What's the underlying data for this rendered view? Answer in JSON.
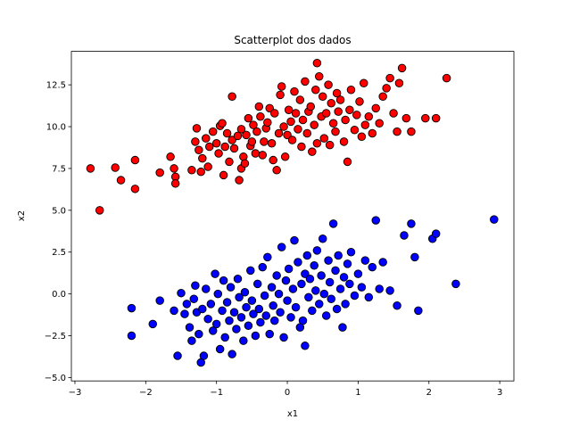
{
  "chart_data": {
    "type": "scatter",
    "title": "Scatterplot dos dados",
    "xlabel": "x1",
    "ylabel": "x2",
    "xlim": [
      -3.05,
      3.2
    ],
    "ylim": [
      -5.2,
      14.5
    ],
    "xticks": [
      -3,
      -2,
      -1,
      0,
      1,
      2,
      3
    ],
    "xtick_labels": [
      "−3",
      "−2",
      "−1",
      "0",
      "1",
      "2",
      "3"
    ],
    "yticks": [
      -5.0,
      -2.5,
      0.0,
      2.5,
      5.0,
      7.5,
      10.0,
      12.5
    ],
    "ytick_labels": [
      "−5.0",
      "−2.5",
      "0.0",
      "2.5",
      "5.0",
      "7.5",
      "10.0",
      "12.5"
    ],
    "grid": false,
    "legend": "none",
    "series": [
      {
        "color": "#ff0000",
        "edgecolor": "#000000",
        "points": [
          [
            -2.78,
            7.5
          ],
          [
            -2.65,
            5.0
          ],
          [
            -2.43,
            7.55
          ],
          [
            -2.35,
            6.8
          ],
          [
            -2.15,
            6.28
          ],
          [
            -2.15,
            8.0
          ],
          [
            -1.8,
            7.25
          ],
          [
            -1.65,
            8.2
          ],
          [
            -1.6,
            7.5
          ],
          [
            -1.58,
            7.0
          ],
          [
            -1.58,
            6.6
          ],
          [
            -1.35,
            7.4
          ],
          [
            -1.3,
            9.1
          ],
          [
            -1.28,
            9.9
          ],
          [
            -1.25,
            8.6
          ],
          [
            -1.22,
            7.3
          ],
          [
            -1.2,
            8.1
          ],
          [
            -1.15,
            9.3
          ],
          [
            -1.12,
            7.6
          ],
          [
            -1.1,
            8.8
          ],
          [
            -1.05,
            9.7
          ],
          [
            -1.0,
            9.0
          ],
          [
            -0.97,
            8.4
          ],
          [
            -0.95,
            10.05
          ],
          [
            -0.92,
            10.2
          ],
          [
            -0.9,
            7.1
          ],
          [
            -0.88,
            8.8
          ],
          [
            -0.85,
            9.6
          ],
          [
            -0.82,
            7.9
          ],
          [
            -0.78,
            11.8
          ],
          [
            -0.78,
            9.2
          ],
          [
            -0.75,
            8.7
          ],
          [
            -0.7,
            9.45
          ],
          [
            -0.68,
            6.8
          ],
          [
            -0.65,
            7.5
          ],
          [
            -0.65,
            9.85
          ],
          [
            -0.62,
            8.2
          ],
          [
            -0.6,
            7.8
          ],
          [
            -0.58,
            9.5
          ],
          [
            -0.55,
            10.5
          ],
          [
            -0.52,
            8.85
          ],
          [
            -0.5,
            9.1
          ],
          [
            -0.48,
            10.1
          ],
          [
            -0.45,
            8.4
          ],
          [
            -0.43,
            9.7
          ],
          [
            -0.4,
            11.2
          ],
          [
            -0.38,
            10.6
          ],
          [
            -0.35,
            8.3
          ],
          [
            -0.33,
            9.1
          ],
          [
            -0.3,
            9.9
          ],
          [
            -0.28,
            10.25
          ],
          [
            -0.25,
            11.1
          ],
          [
            -0.22,
            9.0
          ],
          [
            -0.2,
            8.0
          ],
          [
            -0.18,
            10.8
          ],
          [
            -0.15,
            7.4
          ],
          [
            -0.12,
            9.6
          ],
          [
            -0.1,
            11.9
          ],
          [
            -0.08,
            12.4
          ],
          [
            -0.05,
            10.0
          ],
          [
            -0.03,
            8.2
          ],
          [
            0.0,
            9.5
          ],
          [
            0.02,
            11.0
          ],
          [
            0.05,
            10.3
          ],
          [
            0.07,
            9.2
          ],
          [
            0.1,
            12.1
          ],
          [
            0.12,
            10.8
          ],
          [
            0.15,
            9.85
          ],
          [
            0.18,
            11.6
          ],
          [
            0.2,
            8.8
          ],
          [
            0.22,
            10.4
          ],
          [
            0.25,
            12.7
          ],
          [
            0.28,
            9.6
          ],
          [
            0.3,
            10.9
          ],
          [
            0.33,
            11.2
          ],
          [
            0.35,
            8.5
          ],
          [
            0.38,
            10.1
          ],
          [
            0.4,
            12.2
          ],
          [
            0.42,
            9.0
          ],
          [
            0.45,
            13.0
          ],
          [
            0.48,
            10.6
          ],
          [
            0.5,
            11.8
          ],
          [
            0.52,
            9.3
          ],
          [
            0.55,
            10.8
          ],
          [
            0.58,
            12.5
          ],
          [
            0.6,
            8.9
          ],
          [
            0.62,
            11.4
          ],
          [
            0.65,
            10.2
          ],
          [
            0.68,
            9.7
          ],
          [
            0.7,
            12.0
          ],
          [
            0.72,
            10.9
          ],
          [
            0.75,
            11.6
          ],
          [
            0.8,
            9.1
          ],
          [
            0.82,
            10.4
          ],
          [
            0.85,
            7.9
          ],
          [
            0.88,
            11.0
          ],
          [
            0.9,
            12.2
          ],
          [
            0.95,
            9.8
          ],
          [
            0.98,
            10.7
          ],
          [
            1.02,
            11.5
          ],
          [
            1.05,
            9.4
          ],
          [
            1.08,
            12.6
          ],
          [
            1.1,
            10.1
          ],
          [
            1.15,
            10.6
          ],
          [
            1.2,
            9.6
          ],
          [
            1.25,
            11.1
          ],
          [
            1.3,
            10.2
          ],
          [
            1.35,
            11.8
          ],
          [
            1.4,
            12.3
          ],
          [
            1.45,
            12.9
          ],
          [
            1.5,
            10.8
          ],
          [
            1.55,
            9.7
          ],
          [
            1.58,
            12.6
          ],
          [
            1.62,
            13.5
          ],
          [
            1.68,
            10.5
          ],
          [
            1.75,
            9.7
          ],
          [
            1.95,
            10.5
          ],
          [
            2.1,
            10.5
          ],
          [
            2.25,
            12.9
          ],
          [
            0.42,
            13.8
          ]
        ]
      },
      {
        "color": "#0000ff",
        "edgecolor": "#000000",
        "points": [
          [
            -2.2,
            -0.85
          ],
          [
            -2.2,
            -2.5
          ],
          [
            -1.9,
            -1.8
          ],
          [
            -1.8,
            -0.4
          ],
          [
            -1.6,
            -1.0
          ],
          [
            -1.55,
            -3.7
          ],
          [
            -1.5,
            0.05
          ],
          [
            -1.45,
            -1.2
          ],
          [
            -1.42,
            -0.6
          ],
          [
            -1.38,
            -2.0
          ],
          [
            -1.35,
            -2.8
          ],
          [
            -1.32,
            -0.3
          ],
          [
            -1.3,
            0.5
          ],
          [
            -1.28,
            -1.1
          ],
          [
            -1.25,
            -2.4
          ],
          [
            -1.22,
            -4.1
          ],
          [
            -1.2,
            -0.9
          ],
          [
            -1.18,
            -3.7
          ],
          [
            -1.15,
            0.3
          ],
          [
            -1.12,
            -1.5
          ],
          [
            -1.08,
            -0.6
          ],
          [
            -1.05,
            -2.2
          ],
          [
            -1.02,
            1.2
          ],
          [
            -1.0,
            -1.8
          ],
          [
            -0.98,
            0.0
          ],
          [
            -0.95,
            -3.3
          ],
          [
            -0.92,
            -1.0
          ],
          [
            -0.9,
            0.8
          ],
          [
            -0.88,
            -2.6
          ],
          [
            -0.85,
            -0.5
          ],
          [
            -0.82,
            -1.6
          ],
          [
            -0.8,
            0.4
          ],
          [
            -0.78,
            -3.6
          ],
          [
            -0.75,
            -1.1
          ],
          [
            -0.72,
            -2.1
          ],
          [
            -0.7,
            0.9
          ],
          [
            -0.68,
            -0.2
          ],
          [
            -0.65,
            -1.4
          ],
          [
            -0.62,
            -2.8
          ],
          [
            -0.6,
            0.1
          ],
          [
            -0.58,
            -0.8
          ],
          [
            -0.55,
            -1.9
          ],
          [
            -0.52,
            1.4
          ],
          [
            -0.5,
            -0.4
          ],
          [
            -0.48,
            -1.2
          ],
          [
            -0.45,
            -2.5
          ],
          [
            -0.42,
            0.6
          ],
          [
            -0.4,
            -0.9
          ],
          [
            -0.38,
            -1.7
          ],
          [
            -0.35,
            1.6
          ],
          [
            -0.32,
            -0.1
          ],
          [
            -0.3,
            -1.3
          ],
          [
            -0.28,
            2.2
          ],
          [
            -0.25,
            -2.4
          ],
          [
            -0.22,
            0.4
          ],
          [
            -0.2,
            -0.7
          ],
          [
            -0.18,
            -1.6
          ],
          [
            -0.15,
            1.1
          ],
          [
            -0.12,
            0.0
          ],
          [
            -0.1,
            -1.1
          ],
          [
            -0.08,
            2.8
          ],
          [
            -0.05,
            -2.6
          ],
          [
            -0.02,
            0.8
          ],
          [
            0.0,
            -0.4
          ],
          [
            0.02,
            1.5
          ],
          [
            0.05,
            -1.4
          ],
          [
            0.08,
            0.3
          ],
          [
            0.1,
            3.2
          ],
          [
            0.12,
            -0.8
          ],
          [
            0.15,
            1.9
          ],
          [
            0.18,
            -2.0
          ],
          [
            0.2,
            0.6
          ],
          [
            0.22,
            -1.6
          ],
          [
            0.25,
            1.2
          ],
          [
            0.28,
            2.3
          ],
          [
            0.3,
            -0.2
          ],
          [
            0.32,
            0.9
          ],
          [
            0.35,
            -1.0
          ],
          [
            0.38,
            1.7
          ],
          [
            0.4,
            0.2
          ],
          [
            0.42,
            2.6
          ],
          [
            0.45,
            -0.6
          ],
          [
            0.48,
            1.1
          ],
          [
            0.5,
            3.3
          ],
          [
            0.52,
            0.0
          ],
          [
            0.55,
            -1.3
          ],
          [
            0.58,
            2.0
          ],
          [
            0.6,
            0.7
          ],
          [
            0.62,
            -0.3
          ],
          [
            0.65,
            4.2
          ],
          [
            0.68,
            1.4
          ],
          [
            0.7,
            -0.9
          ],
          [
            0.72,
            2.3
          ],
          [
            0.75,
            0.3
          ],
          [
            0.78,
            -2.0
          ],
          [
            0.8,
            1.0
          ],
          [
            0.82,
            -0.6
          ],
          [
            0.85,
            1.8
          ],
          [
            0.88,
            0.6
          ],
          [
            0.9,
            2.5
          ],
          [
            0.95,
            -0.1
          ],
          [
            1.0,
            1.2
          ],
          [
            1.05,
            0.4
          ],
          [
            1.1,
            2.0
          ],
          [
            1.15,
            -0.2
          ],
          [
            1.2,
            1.6
          ],
          [
            1.25,
            4.4
          ],
          [
            1.3,
            0.3
          ],
          [
            1.35,
            1.9
          ],
          [
            1.45,
            0.2
          ],
          [
            1.55,
            -0.7
          ],
          [
            1.65,
            3.5
          ],
          [
            1.75,
            4.2
          ],
          [
            1.8,
            2.2
          ],
          [
            1.85,
            -1.0
          ],
          [
            2.05,
            3.3
          ],
          [
            2.1,
            3.6
          ],
          [
            2.38,
            0.6
          ],
          [
            2.92,
            4.45
          ],
          [
            0.25,
            -3.1
          ]
        ]
      }
    ]
  }
}
